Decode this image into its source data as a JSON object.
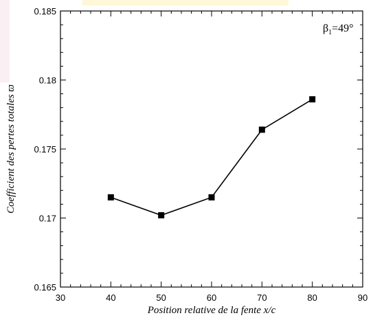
{
  "chart_data": {
    "type": "line",
    "x": [
      40,
      50,
      60,
      70,
      80
    ],
    "series": [
      {
        "values": [
          0.1715,
          0.1702,
          0.1715,
          0.1764,
          0.1786
        ]
      }
    ],
    "xlabel": "Position relative de la fente  x/c",
    "ylabel": "Coefficient des pertes totales ϖ",
    "xlim": [
      30,
      90
    ],
    "ylim": [
      0.165,
      0.185
    ],
    "x_ticks": [
      "30",
      "40",
      "50",
      "60",
      "70",
      "80",
      "90"
    ],
    "y_ticks": [
      "0.165",
      "0.17",
      "0.175",
      "0.18",
      "0.185"
    ],
    "annotation": {
      "symbol": "β",
      "subscript": "1",
      "value": "=49°"
    },
    "marker": "square",
    "color": "#000000",
    "grid": false,
    "legend": "none"
  }
}
